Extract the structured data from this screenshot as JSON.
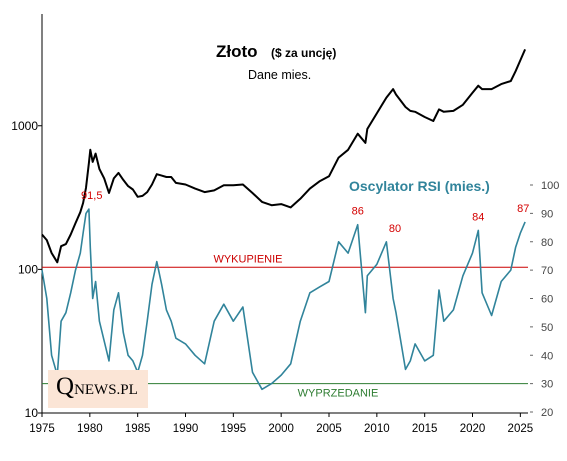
{
  "chart_data": {
    "type": "line",
    "title": "Złoto",
    "title_unit": "($ za uncję)",
    "subtitle": "Dane mies.",
    "x_ticks": [
      "1975",
      "1980",
      "1985",
      "1990",
      "1995",
      "2000",
      "2005",
      "2010",
      "2015",
      "2020",
      "2025"
    ],
    "xlim": [
      1975,
      2025.8
    ],
    "price_axis": {
      "scale": "log",
      "ylim": [
        10,
        6000
      ],
      "ticks": [
        "10",
        "100",
        "1000"
      ]
    },
    "rsi_axis": {
      "ylim": [
        20,
        100
      ],
      "ticks": [
        "20",
        "30",
        "40",
        "50",
        "60",
        "70",
        "80",
        "90",
        "100"
      ]
    },
    "overbought": {
      "label": "WYKUPIENIE",
      "value": 71
    },
    "oversold": {
      "label": "WYPRZEDANIE",
      "value": 30
    },
    "series": [
      {
        "name": "Złoto",
        "color": "#000000",
        "x": [
          1975,
          1975.5,
          1976,
          1976.6,
          1977,
          1977.5,
          1978,
          1978.5,
          1979,
          1979.3,
          1979.6,
          1979.9,
          1980.05,
          1980.3,
          1980.6,
          1981,
          1981.5,
          1982,
          1982.5,
          1983,
          1983.5,
          1984,
          1984.5,
          1985,
          1985.5,
          1986,
          1986.5,
          1987,
          1987.5,
          1988,
          1988.5,
          1989,
          1990,
          1991,
          1992,
          1993,
          1994,
          1995,
          1996,
          1997,
          1998,
          1999,
          2000,
          2001,
          2002,
          2003,
          2004,
          2005,
          2006,
          2007,
          2008,
          2008.8,
          2009,
          2010,
          2011,
          2011.7,
          2012,
          2013,
          2013.5,
          2014,
          2015,
          2015.9,
          2016.5,
          2017,
          2018,
          2019,
          2020,
          2020.6,
          2021,
          2022,
          2023,
          2024,
          2024.5,
          2025,
          2025.5
        ],
        "values": [
          175,
          160,
          130,
          112,
          145,
          150,
          175,
          210,
          250,
          290,
          370,
          550,
          680,
          560,
          640,
          500,
          430,
          340,
          430,
          470,
          420,
          380,
          360,
          320,
          325,
          345,
          390,
          460,
          450,
          440,
          440,
          400,
          390,
          365,
          345,
          355,
          385,
          385,
          390,
          340,
          295,
          280,
          285,
          270,
          310,
          365,
          410,
          445,
          600,
          680,
          880,
          760,
          950,
          1220,
          1570,
          1800,
          1650,
          1350,
          1270,
          1250,
          1150,
          1080,
          1300,
          1250,
          1270,
          1400,
          1700,
          1900,
          1800,
          1800,
          1950,
          2050,
          2400,
          2850,
          3400
        ]
      },
      {
        "name": "Oscylator RSI (mies.)",
        "color": "#31849b",
        "x": [
          1975,
          1975.5,
          1976,
          1976.6,
          1977,
          1977.5,
          1978,
          1978.5,
          1979,
          1979.3,
          1979.6,
          1979.9,
          1980.05,
          1980.3,
          1980.6,
          1981,
          1981.5,
          1982,
          1982.5,
          1983,
          1983.5,
          1984,
          1984.5,
          1985,
          1985.5,
          1986,
          1986.5,
          1987,
          1987.5,
          1988,
          1988.5,
          1989,
          1990,
          1991,
          1992,
          1993,
          1994,
          1995,
          1996,
          1997,
          1998,
          1999,
          2000,
          2001,
          2002,
          2003,
          2004,
          2005,
          2006,
          2007,
          2008,
          2008.8,
          2009,
          2010,
          2011,
          2011.7,
          2012,
          2013,
          2013.5,
          2014,
          2015,
          2015.9,
          2016.5,
          2017,
          2018,
          2019,
          2020,
          2020.6,
          2021,
          2022,
          2023,
          2024,
          2024.5,
          2025,
          2025.5
        ],
        "values": [
          70,
          60,
          40,
          33,
          52,
          55,
          62,
          70,
          76,
          83,
          90,
          91.5,
          78,
          60,
          66,
          52,
          45,
          38,
          56,
          62,
          48,
          40,
          38,
          34,
          40,
          52,
          65,
          73,
          65,
          56,
          52,
          46,
          44,
          40,
          37,
          52,
          58,
          52,
          57,
          34,
          28,
          30,
          33,
          37,
          52,
          62,
          64,
          66,
          80,
          76,
          86,
          55,
          68,
          72,
          80,
          60,
          55,
          35,
          38,
          44,
          38,
          40,
          63,
          52,
          56,
          68,
          76,
          84,
          62,
          54,
          66,
          70,
          78,
          83,
          87
        ]
      }
    ],
    "annotations": [
      {
        "text": "91,5",
        "x": 1980.2,
        "y": 91.5
      },
      {
        "text": "86",
        "x": 2008.0,
        "y": 86
      },
      {
        "text": "80",
        "x": 2011.9,
        "y": 80
      },
      {
        "text": "84",
        "x": 2020.6,
        "y": 84
      },
      {
        "text": "87",
        "x": 2025.3,
        "y": 87
      }
    ]
  },
  "logo": {
    "letter": "Q",
    "text": "NEWS.PL"
  }
}
